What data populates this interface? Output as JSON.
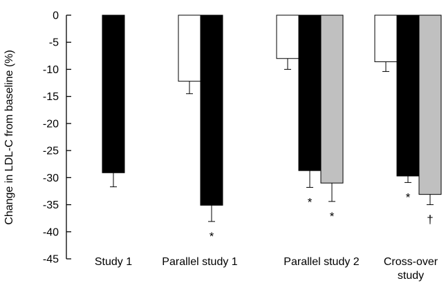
{
  "chart_data": {
    "type": "bar",
    "ylabel": "Change in LDL-C from baseline (%)",
    "ylim": [
      -45,
      0
    ],
    "yticks": [
      0,
      -5,
      -10,
      -15,
      -20,
      -25,
      -30,
      -35,
      -40,
      -45
    ],
    "categories": [
      "Study 1",
      "Parallel study 1",
      "Parallel study 2",
      "Cross-over\nstudy"
    ],
    "groups": [
      {
        "category": "Study 1",
        "bars": [
          {
            "color": "#000000",
            "value": -29.1,
            "error": 2.6,
            "annotation": ""
          }
        ]
      },
      {
        "category": "Parallel study 1",
        "bars": [
          {
            "color": "#ffffff",
            "value": -12.2,
            "error": 2.3,
            "annotation": ""
          },
          {
            "color": "#000000",
            "value": -35.1,
            "error": 3.0,
            "annotation": "*"
          }
        ]
      },
      {
        "category": "Parallel study 2",
        "bars": [
          {
            "color": "#ffffff",
            "value": -8.0,
            "error": 2.0,
            "annotation": ""
          },
          {
            "color": "#000000",
            "value": -28.7,
            "error": 3.1,
            "annotation": "*"
          },
          {
            "color": "#c0c0c0",
            "value": -31.0,
            "error": 3.4,
            "annotation": "*"
          }
        ]
      },
      {
        "category": "Cross-over\nstudy",
        "bars": [
          {
            "color": "#ffffff",
            "value": -8.6,
            "error": 1.8,
            "annotation": ""
          },
          {
            "color": "#000000",
            "value": -29.7,
            "error": 1.2,
            "annotation": "*"
          },
          {
            "color": "#c0c0c0",
            "value": -33.1,
            "error": 1.9,
            "annotation": "†"
          }
        ]
      }
    ]
  }
}
